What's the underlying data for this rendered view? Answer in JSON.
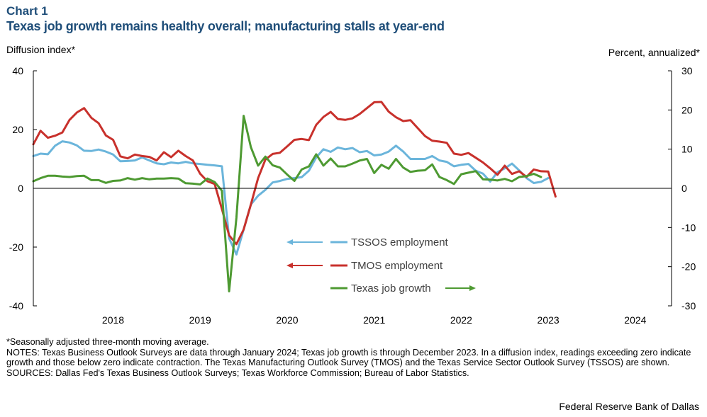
{
  "header": {
    "label": "Chart 1"
  },
  "footer": {
    "footnote": "*Seasonally adjusted three-month moving average.",
    "notes": "NOTES: Texas Business Outlook Surveys are data through January 2024; Texas job growth is through December 2023. In a diffusion index, readings exceeding zero indicate growth and those below zero indicate contraction. The Texas Manufacturing Outlook Survey (TMOS) and the Texas Service Sector Outlook Survey (TSSOS) are shown.",
    "sources": "SOURCES: Dallas Fed's Texas Business Outlook Surveys; Texas Workforce Commission; Bureau of Labor Statistics.",
    "credit": "Federal Reserve Bank of Dallas"
  },
  "chart_data": {
    "type": "line",
    "title": "Texas job growth remains healthy overall; manufacturing stalls at year-end",
    "ylabel": "Diffusion index*",
    "y2label": "Percent, annualized*",
    "ylim": [
      -40,
      40
    ],
    "y2lim": [
      -30,
      30
    ],
    "yticks": [
      "40",
      "20",
      "0",
      "-20",
      "-40"
    ],
    "y2ticks": [
      "30",
      "20",
      "10",
      "0",
      "-10",
      "-20",
      "-30"
    ],
    "x_start": "2017-08",
    "x_end": "2024-12",
    "year_labels": [
      "2018",
      "2019",
      "2020",
      "2021",
      "2022",
      "2023",
      "2024"
    ],
    "grid": false,
    "colors": {
      "tssos": "#6bb5db",
      "tmos": "#c8312c",
      "job_growth": "#4e9a32"
    },
    "series": [
      {
        "name": "TSSOS employment",
        "key": "tssos",
        "axis": "left",
        "start": "2017-08",
        "values": [
          11,
          11.8,
          11.6,
          14.5,
          16,
          15.6,
          14.6,
          12.8,
          12.7,
          13.2,
          12.5,
          11.5,
          9.2,
          9.3,
          9.5,
          10.5,
          9.5,
          8.5,
          8.2,
          8.8,
          8.5,
          9,
          8.5,
          8.3,
          8,
          7.8,
          7.5,
          -17,
          -22.5,
          -14,
          -5.5,
          -2.5,
          -0.5,
          2,
          2.5,
          3.2,
          3.5,
          3.8,
          6,
          10.5,
          13.3,
          12.4,
          13.9,
          13.3,
          13.7,
          12.3,
          12.7,
          11.2,
          11.5,
          12.5,
          14.5,
          12.5,
          10,
          10,
          10,
          11,
          9.5,
          9,
          7.5,
          8,
          8.3,
          6,
          5,
          2.3,
          5.5,
          6.8,
          8.4,
          6.1,
          3.5,
          1.8,
          2.2,
          3.5
        ]
      },
      {
        "name": "TMOS employment",
        "key": "tmos",
        "axis": "left",
        "start": "2017-08",
        "values": [
          15,
          19.6,
          17.2,
          17.9,
          19,
          23.3,
          25.8,
          27.3,
          24,
          22.2,
          18,
          16.5,
          10.9,
          10.2,
          11.5,
          11,
          10.7,
          9.5,
          12.3,
          10.6,
          12.8,
          11,
          9.5,
          5,
          2.4,
          1.5,
          -7,
          -16,
          -19,
          -14,
          -5.5,
          3.5,
          9.8,
          11.7,
          12.1,
          14.3,
          16.5,
          16.8,
          16.4,
          21.6,
          24.3,
          26,
          23.6,
          23.3,
          23.8,
          25.3,
          27.3,
          29.3,
          29.4,
          26.1,
          24.2,
          22.9,
          23.2,
          20.5,
          17.8,
          16.2,
          15.9,
          15.5,
          11.8,
          11.4,
          12,
          10.4,
          8.8,
          6.8,
          4.6,
          7.7,
          4.9,
          5.8,
          3.9,
          6.4,
          5.8,
          5.7,
          -2.8
        ]
      },
      {
        "name": "Texas job growth",
        "key": "job_growth",
        "axis": "right",
        "start": "2017-08",
        "values": [
          1.8,
          2.6,
          3.2,
          3.2,
          3.0,
          2.9,
          3.1,
          3.2,
          2.1,
          2.1,
          1.4,
          1.9,
          2.0,
          2.6,
          2.2,
          2.6,
          2.3,
          2.5,
          2.5,
          2.6,
          2.5,
          1.3,
          1.2,
          1.0,
          2.5,
          1.6,
          -0.6,
          -26.3,
          -7.5,
          18.5,
          10.5,
          5.8,
          8.1,
          5.9,
          5.3,
          3.5,
          1.9,
          4.8,
          5.6,
          8.7,
          5.8,
          7.6,
          5.6,
          5.6,
          6.3,
          7.1,
          7.5,
          3.9,
          6.0,
          5.0,
          7.5,
          5.3,
          4.2,
          4.5,
          4.6,
          6.1,
          2.9,
          2.1,
          1.1,
          3.6,
          4.0,
          4.4,
          2.3,
          2.2,
          2.0,
          2.4,
          1.8,
          2.9,
          3.1,
          3.7,
          2.9
        ]
      }
    ],
    "legend": [
      {
        "label": "TSSOS employment",
        "key": "tssos",
        "arrow": "left"
      },
      {
        "label": "TMOS employment",
        "key": "tmos",
        "arrow": "left"
      },
      {
        "label": "Texas job growth",
        "key": "job_growth",
        "arrow": "right"
      }
    ]
  }
}
